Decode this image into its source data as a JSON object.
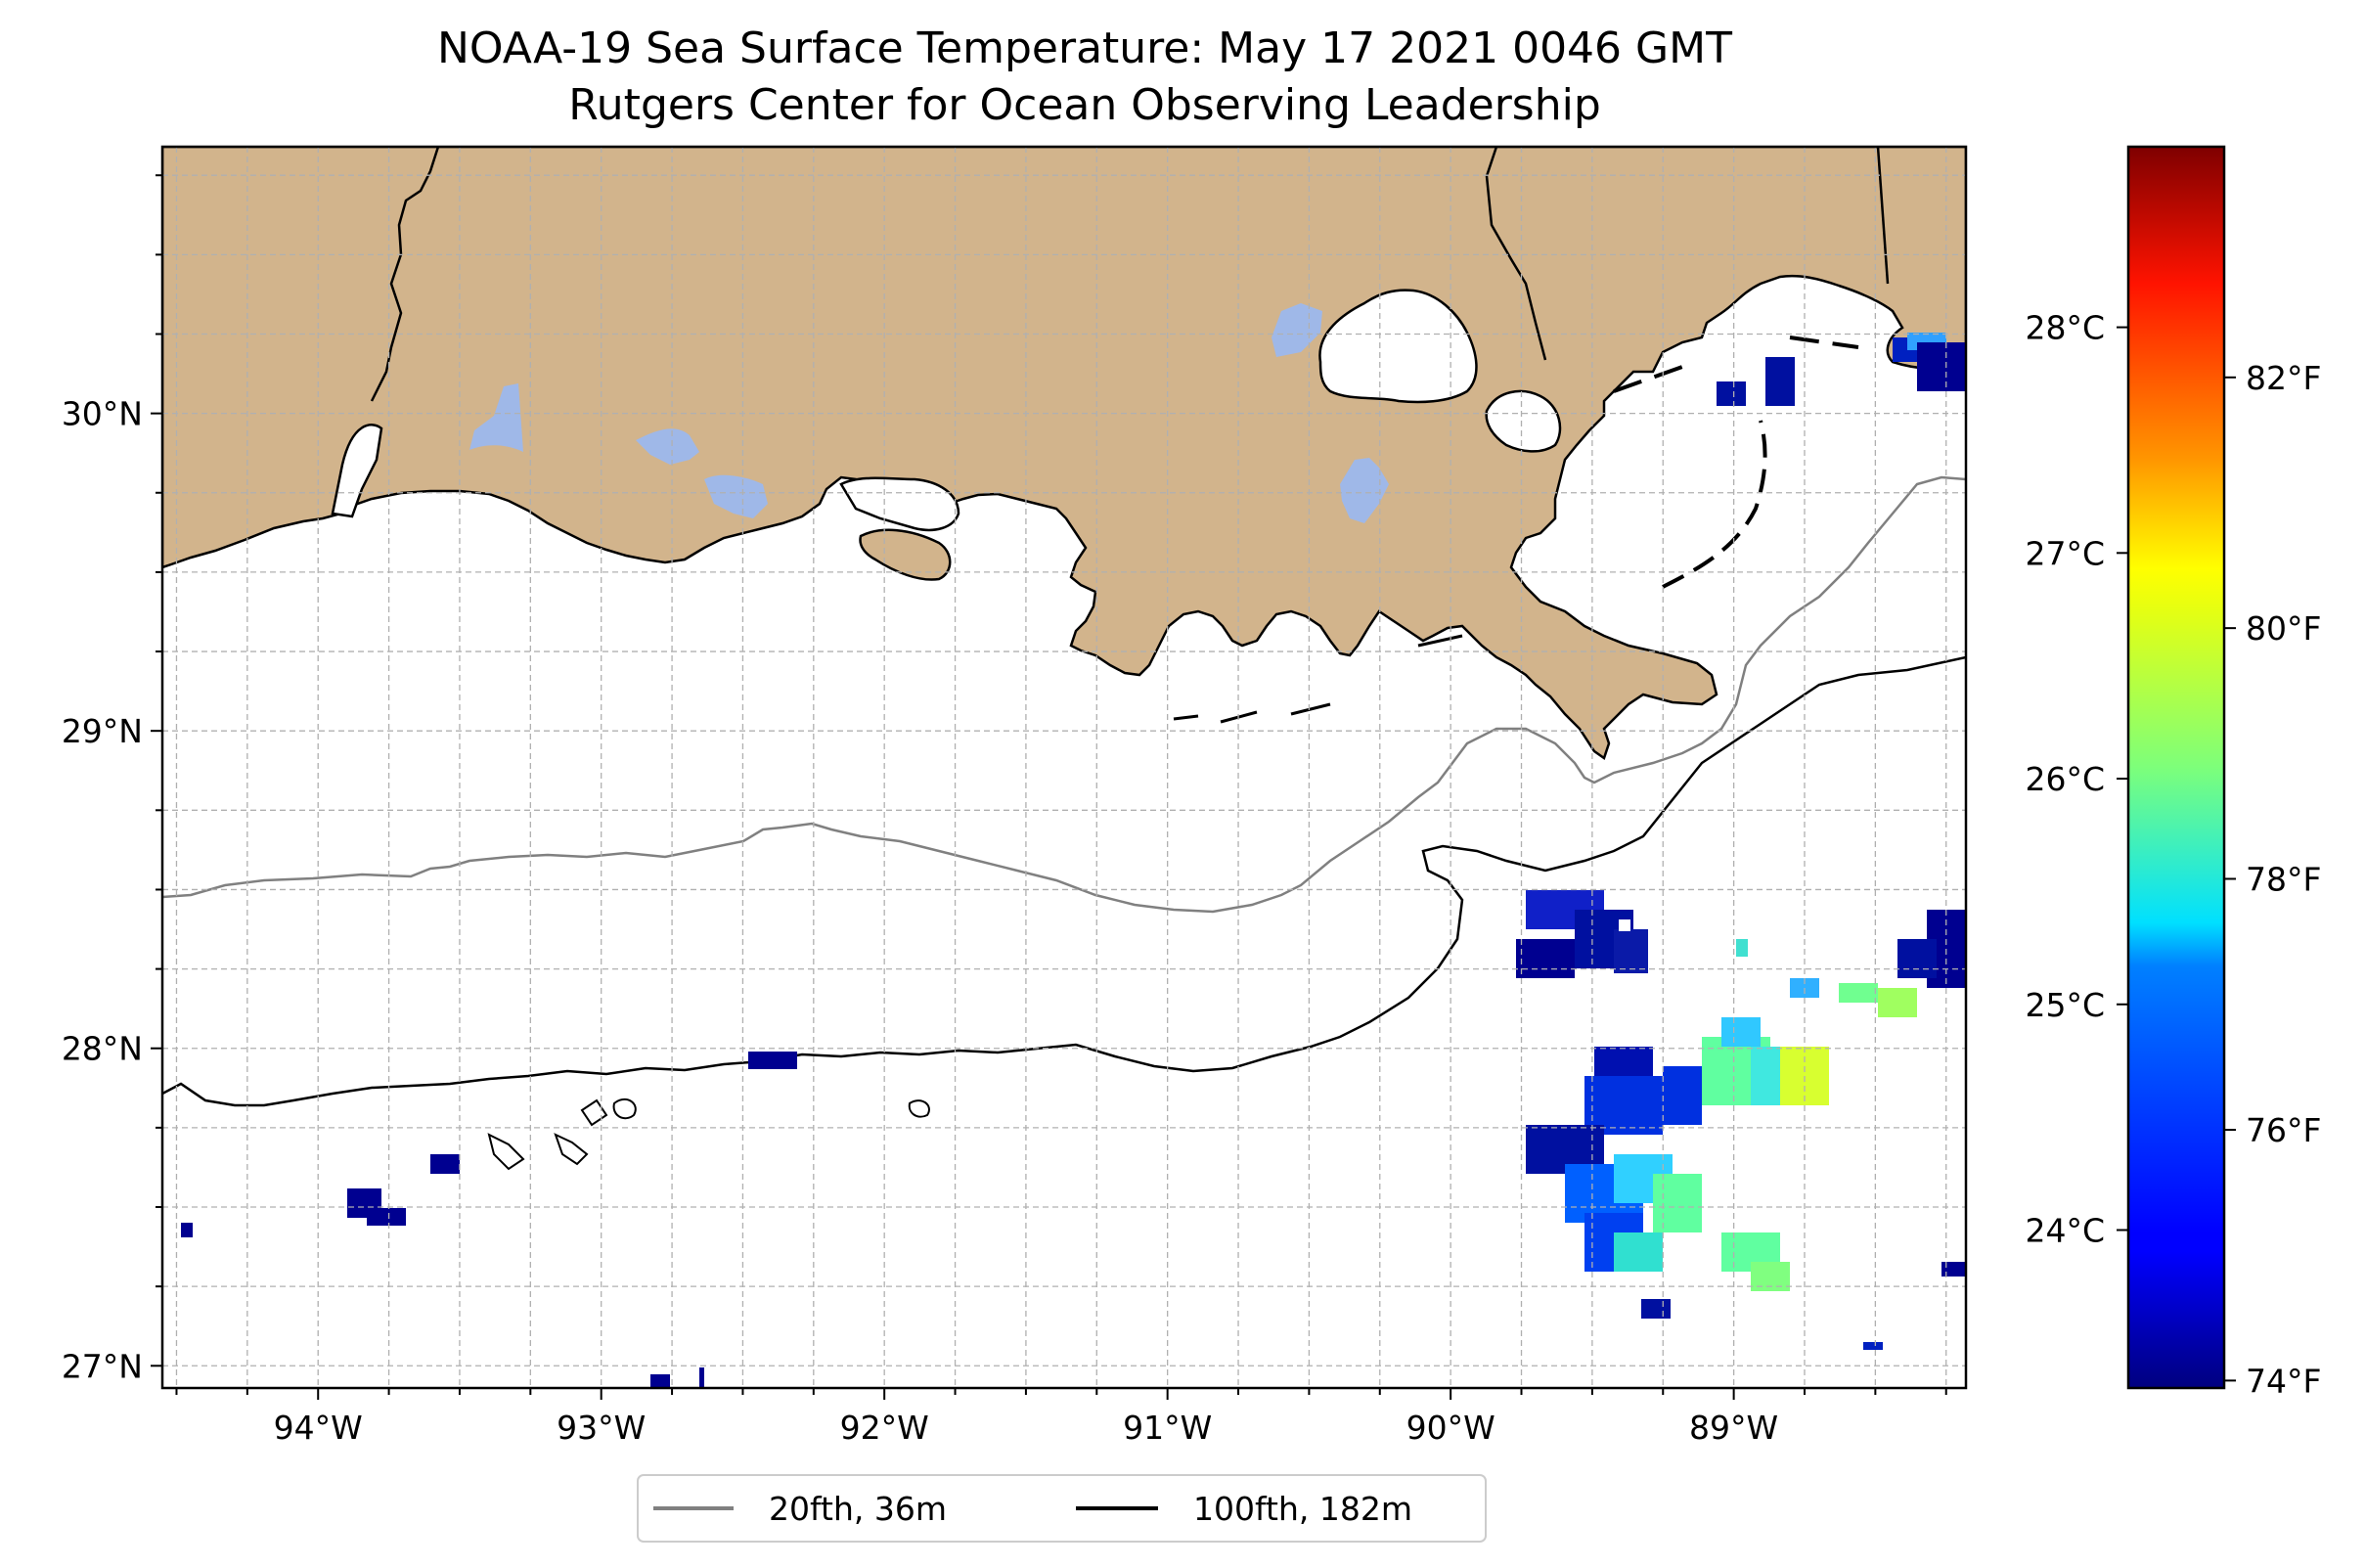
{
  "title": {
    "line1": "NOAA-19 Sea Surface Temperature: May 17 2021 0046 GMT",
    "line2": "Rutgers Center for Ocean Observing Leadership"
  },
  "map": {
    "lon_range": [
      -94.55,
      -88.18
    ],
    "lat_range": [
      26.93,
      30.84
    ],
    "lon_ticks": [
      {
        "value": -94,
        "label": "94°W"
      },
      {
        "value": -93,
        "label": "93°W"
      },
      {
        "value": -92,
        "label": "92°W"
      },
      {
        "value": -91,
        "label": "91°W"
      },
      {
        "value": -90,
        "label": "90°W"
      },
      {
        "value": -89,
        "label": "89°W"
      }
    ],
    "lat_ticks": [
      {
        "value": 27,
        "label": "27°N"
      },
      {
        "value": 28,
        "label": "28°N"
      },
      {
        "value": 29,
        "label": "29°N"
      },
      {
        "value": 30,
        "label": "30°N"
      }
    ],
    "gridlines": "dashed, every 0.25°",
    "colors": {
      "land": "#d2b48c",
      "lakes": "#9fb8e8",
      "coastline": "#000000",
      "isobath_20fth": "#808080",
      "isobath_100fth": "#000000"
    }
  },
  "legend": {
    "placement": "bottom-center",
    "items": [
      {
        "label": "20fth, 36m",
        "color": "#808080"
      },
      {
        "label": "100fth, 182m",
        "color": "#000000"
      }
    ]
  },
  "colorbar": {
    "colormap": "jet",
    "range_c": [
      23.3,
      28.8
    ],
    "celsius_ticks": [
      {
        "value": 24,
        "label": "24°C"
      },
      {
        "value": 25,
        "label": "25°C"
      },
      {
        "value": 26,
        "label": "26°C"
      },
      {
        "value": 27,
        "label": "27°C"
      },
      {
        "value": 28,
        "label": "28°C"
      }
    ],
    "fahrenheit_ticks": [
      {
        "value_c": 23.333,
        "label": "74°F"
      },
      {
        "value_c": 24.444,
        "label": "76°F"
      },
      {
        "value_c": 25.556,
        "label": "78°F"
      },
      {
        "value_c": 26.667,
        "label": "80°F"
      },
      {
        "value_c": 27.778,
        "label": "82°F"
      }
    ]
  }
}
